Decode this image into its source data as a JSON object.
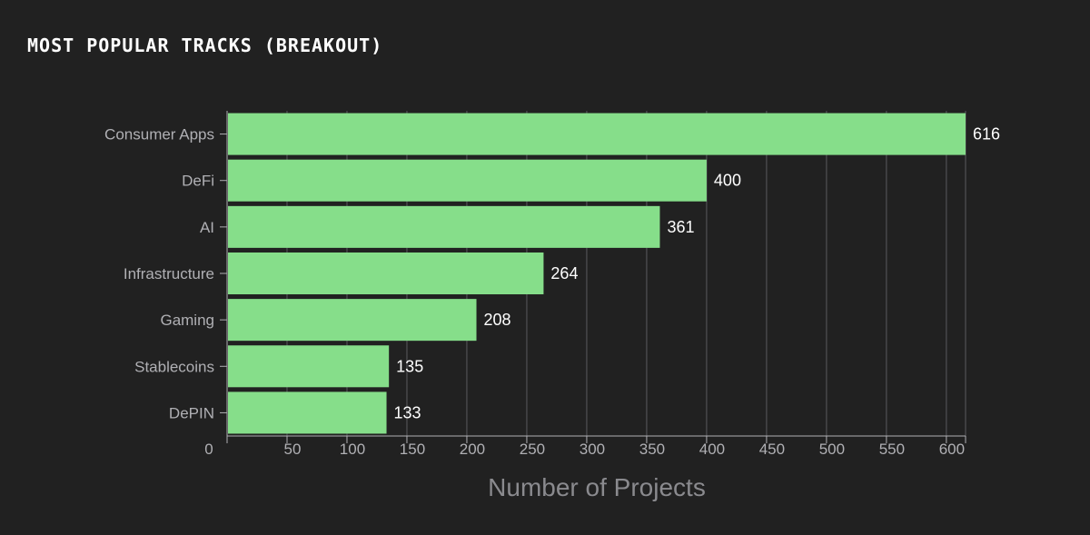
{
  "chart_data": {
    "type": "bar",
    "orientation": "horizontal",
    "title": "MOST POPULAR TRACKS (BREAKOUT)",
    "xlabel": "Number of Projects",
    "ylabel": "",
    "categories": [
      "Consumer Apps",
      "DeFi",
      "AI",
      "Infrastructure",
      "Gaming",
      "Stablecoins",
      "DePIN"
    ],
    "values": [
      616,
      400,
      361,
      264,
      208,
      135,
      133
    ],
    "xlim": [
      0,
      616
    ],
    "xticks": [
      0,
      50,
      100,
      150,
      200,
      250,
      300,
      350,
      400,
      450,
      500,
      550,
      600
    ],
    "grid": true,
    "bar_color": "#86de8a",
    "background": "#212121",
    "grid_color": "#5a5a5e"
  }
}
